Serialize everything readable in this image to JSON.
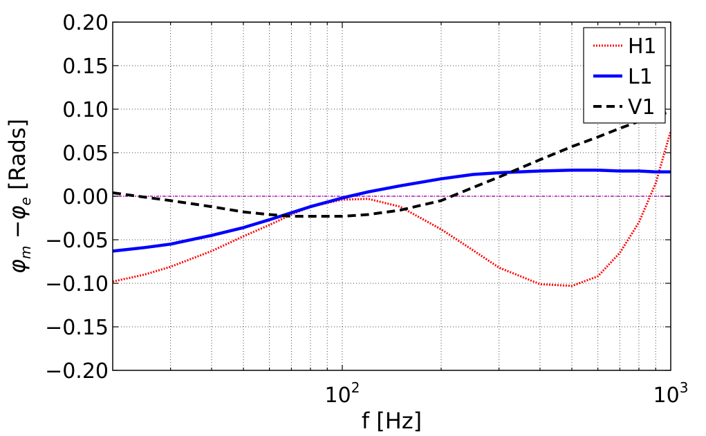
{
  "chart_data": {
    "type": "line",
    "xscale": "log",
    "xlim": [
      20,
      1000
    ],
    "ylim": [
      -0.2,
      0.2
    ],
    "xlabel": "f [Hz]",
    "ylabel_parts": {
      "phi": "φ",
      "sub_m": "m",
      "minus": "−",
      "sub_e": "e",
      "unit": "[Rads]"
    },
    "grid": true,
    "legend_position": "top-right",
    "yticks": [
      -0.2,
      -0.15,
      -0.1,
      -0.05,
      0.0,
      0.05,
      0.1,
      0.15,
      0.2
    ],
    "ytick_labels": [
      "−0.20",
      "−0.15",
      "−0.10",
      "−0.05",
      "0.00",
      "0.05",
      "0.10",
      "0.15",
      "0.20"
    ],
    "xticks": [
      {
        "value": 100,
        "base": "10",
        "exp": "2"
      },
      {
        "value": 1000,
        "base": "10",
        "exp": "3"
      }
    ],
    "zero_line_color": "#bf00bf",
    "series": [
      {
        "name": "H1",
        "color": "#ff0000",
        "style": "dotted",
        "x": [
          20,
          25,
          30,
          40,
          50,
          60,
          70,
          80,
          100,
          120,
          150,
          200,
          250,
          300,
          400,
          500,
          600,
          700,
          800,
          900,
          1000
        ],
        "y": [
          -0.098,
          -0.09,
          -0.081,
          -0.063,
          -0.046,
          -0.033,
          -0.021,
          -0.012,
          -0.004,
          -0.003,
          -0.012,
          -0.038,
          -0.062,
          -0.082,
          -0.101,
          -0.103,
          -0.092,
          -0.065,
          -0.03,
          0.015,
          0.075
        ]
      },
      {
        "name": "L1",
        "color": "#0000ff",
        "style": "solid",
        "x": [
          20,
          25,
          30,
          40,
          50,
          60,
          70,
          80,
          100,
          120,
          150,
          200,
          250,
          300,
          400,
          500,
          600,
          700,
          800,
          900,
          1000
        ],
        "y": [
          -0.063,
          -0.059,
          -0.055,
          -0.045,
          -0.036,
          -0.027,
          -0.019,
          -0.012,
          -0.002,
          0.005,
          0.012,
          0.02,
          0.025,
          0.027,
          0.029,
          0.03,
          0.03,
          0.029,
          0.029,
          0.028,
          0.028
        ]
      },
      {
        "name": "V1",
        "color": "#000000",
        "style": "dashed",
        "x": [
          20,
          25,
          30,
          40,
          50,
          60,
          70,
          80,
          100,
          120,
          150,
          200,
          250,
          300,
          400,
          500,
          600,
          700,
          800,
          900,
          1000
        ],
        "y": [
          0.004,
          -0.001,
          -0.005,
          -0.012,
          -0.018,
          -0.021,
          -0.023,
          -0.023,
          -0.023,
          -0.021,
          -0.016,
          -0.005,
          0.01,
          0.022,
          0.042,
          0.057,
          0.068,
          0.078,
          0.086,
          0.093,
          0.097
        ]
      }
    ]
  }
}
